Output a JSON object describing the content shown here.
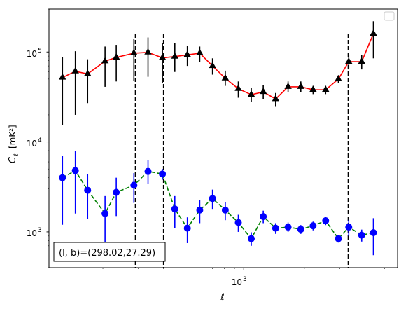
{
  "chart_data": {
    "type": "scatter",
    "title": "",
    "xlabel": "ℓ",
    "ylabel_main": "C",
    "ylabel_sub": "ℓ",
    "ylabel_unit": "[mK²]",
    "xscale": "log",
    "yscale": "log",
    "xlim": [
      108,
      5800
    ],
    "ylim": [
      400,
      300000
    ],
    "x_tick_labels": [
      {
        "value": 1000,
        "base": "10",
        "exp": "3"
      }
    ],
    "y_tick_labels": [
      {
        "value": 1000,
        "base": "10",
        "exp": "3"
      },
      {
        "value": 10000,
        "base": "10",
        "exp": "4"
      },
      {
        "value": 100000,
        "base": "10",
        "exp": "5"
      }
    ],
    "legend_position": "top-right",
    "annotation": "(l, b)=(298.02,27.29)",
    "vlines": [
      290,
      400,
      3300
    ],
    "series": [
      {
        "color": "#000000",
        "marker": "triangle",
        "line_color": "#ff0000",
        "line_style": "solid",
        "points": [
          {
            "x": 126,
            "y": 52000,
            "lo": 15500,
            "hi": 87000
          },
          {
            "x": 146,
            "y": 61000,
            "lo": 20000,
            "hi": 102000
          },
          {
            "x": 168,
            "y": 57000,
            "lo": 27000,
            "hi": 83000
          },
          {
            "x": 205,
            "y": 79000,
            "lo": 41000,
            "hi": 115000
          },
          {
            "x": 233,
            "y": 87000,
            "lo": 47000,
            "hi": 120000
          },
          {
            "x": 285,
            "y": 97000,
            "lo": 48000,
            "hi": 140000
          },
          {
            "x": 335,
            "y": 99000,
            "lo": 53000,
            "hi": 145000
          },
          {
            "x": 395,
            "y": 86000,
            "lo": 45000,
            "hi": 125000
          },
          {
            "x": 455,
            "y": 89000,
            "lo": 60000,
            "hi": 125000
          },
          {
            "x": 525,
            "y": 93000,
            "lo": 70000,
            "hi": 118000
          },
          {
            "x": 605,
            "y": 97000,
            "lo": 78000,
            "hi": 115000
          },
          {
            "x": 700,
            "y": 70000,
            "lo": 56000,
            "hi": 85000
          },
          {
            "x": 810,
            "y": 51000,
            "lo": 42000,
            "hi": 62000
          },
          {
            "x": 940,
            "y": 39000,
            "lo": 31000,
            "hi": 47000
          },
          {
            "x": 1090,
            "y": 33500,
            "lo": 28000,
            "hi": 40000
          },
          {
            "x": 1250,
            "y": 36000,
            "lo": 30000,
            "hi": 43000
          },
          {
            "x": 1440,
            "y": 30000,
            "lo": 25000,
            "hi": 35000
          },
          {
            "x": 1660,
            "y": 41000,
            "lo": 36000,
            "hi": 47000
          },
          {
            "x": 1920,
            "y": 41000,
            "lo": 36000,
            "hi": 47000
          },
          {
            "x": 2210,
            "y": 38000,
            "lo": 34000,
            "hi": 42000
          },
          {
            "x": 2550,
            "y": 38000,
            "lo": 34000,
            "hi": 42000
          },
          {
            "x": 2950,
            "y": 50000,
            "lo": 45000,
            "hi": 55000
          },
          {
            "x": 3320,
            "y": 78000,
            "lo": 64000,
            "hi": 92000
          },
          {
            "x": 3850,
            "y": 78000,
            "lo": 64000,
            "hi": 92000
          },
          {
            "x": 4400,
            "y": 160000,
            "lo": 85000,
            "hi": 220000
          }
        ]
      },
      {
        "color": "#0000ff",
        "marker": "circle",
        "line_color": "#008000",
        "line_style": "dashed",
        "points": [
          {
            "x": 126,
            "y": 4000,
            "lo": 1200,
            "hi": 7000
          },
          {
            "x": 146,
            "y": 4800,
            "lo": 1600,
            "hi": 8000
          },
          {
            "x": 168,
            "y": 2900,
            "lo": 1400,
            "hi": 4400
          },
          {
            "x": 205,
            "y": 1600,
            "lo": 700,
            "hi": 2500
          },
          {
            "x": 233,
            "y": 2750,
            "lo": 1500,
            "hi": 4000
          },
          {
            "x": 285,
            "y": 3300,
            "lo": 2100,
            "hi": 4500
          },
          {
            "x": 335,
            "y": 4700,
            "lo": 3400,
            "hi": 6300
          },
          {
            "x": 395,
            "y": 4400,
            "lo": 3800,
            "hi": 5000
          },
          {
            "x": 455,
            "y": 1800,
            "lo": 1100,
            "hi": 2500
          },
          {
            "x": 525,
            "y": 1100,
            "lo": 750,
            "hi": 1450
          },
          {
            "x": 605,
            "y": 1750,
            "lo": 1250,
            "hi": 2250
          },
          {
            "x": 700,
            "y": 2350,
            "lo": 1800,
            "hi": 2950
          },
          {
            "x": 810,
            "y": 1750,
            "lo": 1350,
            "hi": 2150
          },
          {
            "x": 940,
            "y": 1270,
            "lo": 1000,
            "hi": 1550
          },
          {
            "x": 1090,
            "y": 840,
            "lo": 700,
            "hi": 990
          },
          {
            "x": 1250,
            "y": 1480,
            "lo": 1250,
            "hi": 1720
          },
          {
            "x": 1440,
            "y": 1100,
            "lo": 950,
            "hi": 1250
          },
          {
            "x": 1660,
            "y": 1130,
            "lo": 1000,
            "hi": 1270
          },
          {
            "x": 1920,
            "y": 1070,
            "lo": 950,
            "hi": 1190
          },
          {
            "x": 2210,
            "y": 1170,
            "lo": 1040,
            "hi": 1300
          },
          {
            "x": 2550,
            "y": 1330,
            "lo": 1190,
            "hi": 1470
          },
          {
            "x": 2950,
            "y": 840,
            "lo": 760,
            "hi": 920
          },
          {
            "x": 3320,
            "y": 1130,
            "lo": 900,
            "hi": 1360
          },
          {
            "x": 3850,
            "y": 920,
            "lo": 780,
            "hi": 1060
          },
          {
            "x": 4400,
            "y": 980,
            "lo": 550,
            "hi": 1420
          }
        ]
      }
    ]
  }
}
